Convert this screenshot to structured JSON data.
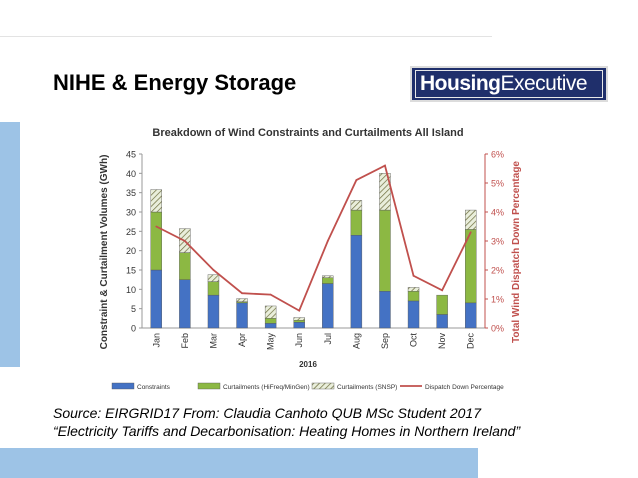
{
  "slide": {
    "title": "NIHE & Energy Storage",
    "logo_bold": "Housing",
    "logo_light": "Executive",
    "caption_line1": "Source: EIRGRID17 From: Claudia Canhoto QUB MSc Student 2017",
    "caption_line2": "“Electricity Tariffs and Decarbonisation: Heating Homes in Northern Ireland”",
    "colors": {
      "accent_band": "#9dc3e6",
      "logo_bg": "#1f2f6b"
    }
  },
  "chart_data": {
    "type": "bar",
    "title": "Breakdown of Wind Constraints and Curtailments All Island",
    "xlabel": "2016",
    "ylabel": "Constraint & Curtailment Volumes (GWh)",
    "y2label": "Total Wind Dispatch Down Percentage",
    "categories": [
      "Jan",
      "Feb",
      "Mar",
      "Apr",
      "May",
      "Jun",
      "Jul",
      "Aug",
      "Sep",
      "Oct",
      "Nov",
      "Dec"
    ],
    "ylim": [
      0,
      45
    ],
    "yticks": [
      "0",
      "5",
      "10",
      "15",
      "20",
      "25",
      "30",
      "35",
      "40",
      "45"
    ],
    "y2lim": [
      0,
      6
    ],
    "y2ticks": [
      "0%",
      "1%",
      "2%",
      "3%",
      "4%",
      "5%",
      "6%"
    ],
    "stacked": true,
    "series": [
      {
        "name": "Constraints",
        "type": "bar",
        "color": "#4472c4",
        "values": [
          15,
          12.5,
          8.5,
          6.5,
          1.2,
          1.5,
          11.5,
          24,
          9.5,
          7,
          3.5,
          6.5
        ]
      },
      {
        "name": "Curtailments (HiFreq/MinGen)",
        "type": "bar",
        "color": "#8cb843",
        "values": [
          15,
          7,
          3.5,
          0.3,
          1.3,
          0.5,
          1.5,
          6.5,
          21,
          2.5,
          5,
          19
        ]
      },
      {
        "name": "Curtailments (SNSP)",
        "type": "bar",
        "pattern": "hatch",
        "values": [
          5.8,
          6.2,
          1.8,
          0.8,
          3.2,
          0.7,
          0.5,
          2.5,
          9.5,
          1,
          0,
          5
        ]
      },
      {
        "name": "Dispatch Down Percentage",
        "type": "line",
        "axis": "right",
        "color": "#c0504d",
        "values": [
          3.5,
          3.0,
          2.0,
          1.2,
          1.15,
          0.6,
          3.0,
          5.1,
          5.6,
          1.8,
          1.3,
          3.3
        ]
      }
    ],
    "legend_position": "bottom",
    "grid": false
  }
}
